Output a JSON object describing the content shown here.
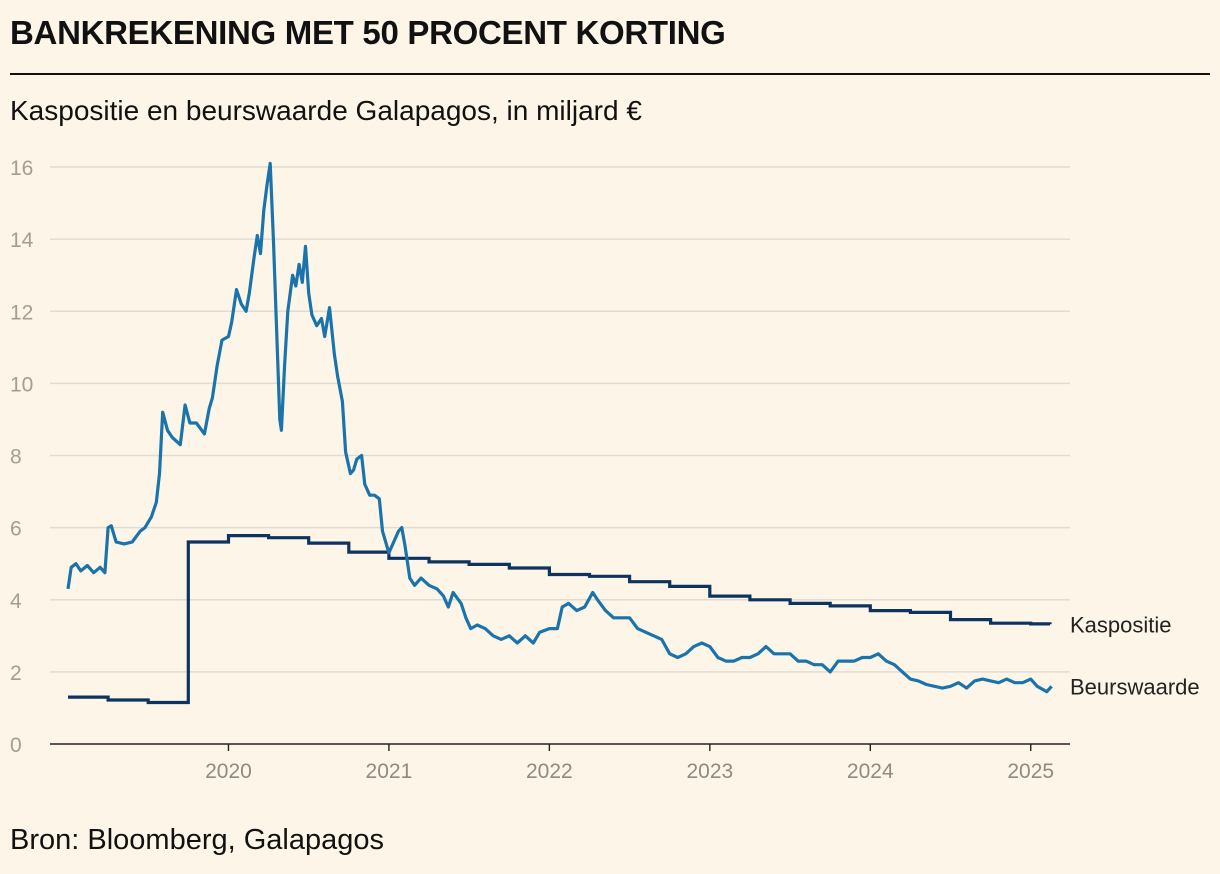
{
  "header": {
    "title": "BANKREKENING MET 50 PROCENT KORTING",
    "subtitle": "Kaspositie en beurswaarde Galapagos, in miljard €"
  },
  "footer": {
    "source": "Bron: Bloomberg, Galapagos"
  },
  "colors": {
    "kaspositie": "#0d3460",
    "beurswaarde": "#1a73ab",
    "grid": "#e0dcd3",
    "background": "#fdf6e8"
  },
  "chart_data": {
    "type": "line",
    "title": "Kaspositie en beurswaarde Galapagos, in miljard €",
    "xlabel": "",
    "ylabel": "",
    "xlim": [
      2019.0,
      2025.25
    ],
    "ylim": [
      0,
      16
    ],
    "y_ticks": [
      0,
      2,
      4,
      6,
      8,
      10,
      12,
      14,
      16
    ],
    "x_ticks": [
      2020,
      2021,
      2022,
      2023,
      2024,
      2025
    ],
    "grid": true,
    "series": [
      {
        "name": "Kaspositie",
        "interpolation": "step",
        "points": [
          [
            2019.0,
            1.3
          ],
          [
            2019.25,
            1.22
          ],
          [
            2019.5,
            1.15
          ],
          [
            2019.75,
            5.6
          ],
          [
            2020.0,
            5.78
          ],
          [
            2020.25,
            5.72
          ],
          [
            2020.5,
            5.57
          ],
          [
            2020.75,
            5.32
          ],
          [
            2021.0,
            5.15
          ],
          [
            2021.25,
            5.05
          ],
          [
            2021.5,
            4.98
          ],
          [
            2021.75,
            4.88
          ],
          [
            2022.0,
            4.7
          ],
          [
            2022.25,
            4.65
          ],
          [
            2022.5,
            4.5
          ],
          [
            2022.75,
            4.37
          ],
          [
            2023.0,
            4.1
          ],
          [
            2023.25,
            4.0
          ],
          [
            2023.5,
            3.9
          ],
          [
            2023.75,
            3.83
          ],
          [
            2024.0,
            3.7
          ],
          [
            2024.25,
            3.65
          ],
          [
            2024.5,
            3.45
          ],
          [
            2024.75,
            3.35
          ],
          [
            2025.0,
            3.33
          ],
          [
            2025.12,
            3.32
          ]
        ]
      },
      {
        "name": "Beurswaarde",
        "interpolation": "linear",
        "points": [
          [
            2019.0,
            4.3
          ],
          [
            2019.02,
            4.9
          ],
          [
            2019.05,
            5.0
          ],
          [
            2019.08,
            4.8
          ],
          [
            2019.12,
            4.95
          ],
          [
            2019.16,
            4.75
          ],
          [
            2019.2,
            4.9
          ],
          [
            2019.23,
            4.75
          ],
          [
            2019.25,
            6.0
          ],
          [
            2019.27,
            6.05
          ],
          [
            2019.3,
            5.6
          ],
          [
            2019.35,
            5.55
          ],
          [
            2019.4,
            5.6
          ],
          [
            2019.45,
            5.9
          ],
          [
            2019.48,
            6.0
          ],
          [
            2019.52,
            6.3
          ],
          [
            2019.55,
            6.7
          ],
          [
            2019.57,
            7.5
          ],
          [
            2019.59,
            9.2
          ],
          [
            2019.62,
            8.7
          ],
          [
            2019.65,
            8.5
          ],
          [
            2019.7,
            8.3
          ],
          [
            2019.73,
            9.4
          ],
          [
            2019.76,
            8.9
          ],
          [
            2019.8,
            8.9
          ],
          [
            2019.85,
            8.6
          ],
          [
            2019.88,
            9.3
          ],
          [
            2019.9,
            9.6
          ],
          [
            2019.93,
            10.5
          ],
          [
            2019.96,
            11.2
          ],
          [
            2020.0,
            11.3
          ],
          [
            2020.02,
            11.7
          ],
          [
            2020.05,
            12.6
          ],
          [
            2020.08,
            12.2
          ],
          [
            2020.11,
            12.0
          ],
          [
            2020.13,
            12.5
          ],
          [
            2020.16,
            13.5
          ],
          [
            2020.18,
            14.1
          ],
          [
            2020.2,
            13.6
          ],
          [
            2020.22,
            14.8
          ],
          [
            2020.24,
            15.5
          ],
          [
            2020.26,
            16.1
          ],
          [
            2020.28,
            14.0
          ],
          [
            2020.3,
            11.5
          ],
          [
            2020.32,
            9.0
          ],
          [
            2020.33,
            8.7
          ],
          [
            2020.35,
            10.5
          ],
          [
            2020.37,
            12.0
          ],
          [
            2020.4,
            13.0
          ],
          [
            2020.42,
            12.7
          ],
          [
            2020.44,
            13.3
          ],
          [
            2020.46,
            12.8
          ],
          [
            2020.48,
            13.8
          ],
          [
            2020.5,
            12.5
          ],
          [
            2020.52,
            11.9
          ],
          [
            2020.55,
            11.6
          ],
          [
            2020.58,
            11.8
          ],
          [
            2020.6,
            11.3
          ],
          [
            2020.63,
            12.1
          ],
          [
            2020.66,
            10.8
          ],
          [
            2020.68,
            10.2
          ],
          [
            2020.71,
            9.5
          ],
          [
            2020.73,
            8.1
          ],
          [
            2020.76,
            7.5
          ],
          [
            2020.78,
            7.6
          ],
          [
            2020.8,
            7.9
          ],
          [
            2020.83,
            8.0
          ],
          [
            2020.85,
            7.2
          ],
          [
            2020.88,
            6.9
          ],
          [
            2020.91,
            6.9
          ],
          [
            2020.94,
            6.8
          ],
          [
            2020.96,
            5.9
          ],
          [
            2020.98,
            5.6
          ],
          [
            2021.0,
            5.3
          ],
          [
            2021.03,
            5.6
          ],
          [
            2021.06,
            5.9
          ],
          [
            2021.08,
            6.0
          ],
          [
            2021.1,
            5.5
          ],
          [
            2021.13,
            4.6
          ],
          [
            2021.16,
            4.4
          ],
          [
            2021.2,
            4.6
          ],
          [
            2021.25,
            4.4
          ],
          [
            2021.3,
            4.3
          ],
          [
            2021.34,
            4.1
          ],
          [
            2021.37,
            3.8
          ],
          [
            2021.4,
            4.2
          ],
          [
            2021.45,
            3.9
          ],
          [
            2021.48,
            3.5
          ],
          [
            2021.51,
            3.2
          ],
          [
            2021.55,
            3.3
          ],
          [
            2021.6,
            3.2
          ],
          [
            2021.65,
            3.0
          ],
          [
            2021.7,
            2.9
          ],
          [
            2021.75,
            3.0
          ],
          [
            2021.8,
            2.8
          ],
          [
            2021.85,
            3.0
          ],
          [
            2021.9,
            2.8
          ],
          [
            2021.94,
            3.1
          ],
          [
            2022.0,
            3.2
          ],
          [
            2022.05,
            3.2
          ],
          [
            2022.08,
            3.8
          ],
          [
            2022.12,
            3.9
          ],
          [
            2022.17,
            3.7
          ],
          [
            2022.22,
            3.8
          ],
          [
            2022.27,
            4.2
          ],
          [
            2022.3,
            4.0
          ],
          [
            2022.35,
            3.7
          ],
          [
            2022.4,
            3.5
          ],
          [
            2022.45,
            3.5
          ],
          [
            2022.5,
            3.5
          ],
          [
            2022.55,
            3.2
          ],
          [
            2022.6,
            3.1
          ],
          [
            2022.65,
            3.0
          ],
          [
            2022.7,
            2.9
          ],
          [
            2022.75,
            2.5
          ],
          [
            2022.8,
            2.4
          ],
          [
            2022.85,
            2.5
          ],
          [
            2022.9,
            2.7
          ],
          [
            2022.95,
            2.8
          ],
          [
            2023.0,
            2.7
          ],
          [
            2023.05,
            2.4
          ],
          [
            2023.1,
            2.3
          ],
          [
            2023.15,
            2.3
          ],
          [
            2023.2,
            2.4
          ],
          [
            2023.25,
            2.4
          ],
          [
            2023.3,
            2.5
          ],
          [
            2023.35,
            2.7
          ],
          [
            2023.4,
            2.5
          ],
          [
            2023.45,
            2.5
          ],
          [
            2023.5,
            2.5
          ],
          [
            2023.55,
            2.3
          ],
          [
            2023.6,
            2.3
          ],
          [
            2023.65,
            2.2
          ],
          [
            2023.7,
            2.2
          ],
          [
            2023.75,
            2.0
          ],
          [
            2023.8,
            2.3
          ],
          [
            2023.85,
            2.3
          ],
          [
            2023.9,
            2.3
          ],
          [
            2023.95,
            2.4
          ],
          [
            2024.0,
            2.4
          ],
          [
            2024.05,
            2.5
          ],
          [
            2024.1,
            2.3
          ],
          [
            2024.15,
            2.2
          ],
          [
            2024.2,
            2.0
          ],
          [
            2024.25,
            1.8
          ],
          [
            2024.3,
            1.75
          ],
          [
            2024.35,
            1.65
          ],
          [
            2024.4,
            1.6
          ],
          [
            2024.45,
            1.55
          ],
          [
            2024.5,
            1.6
          ],
          [
            2024.55,
            1.7
          ],
          [
            2024.6,
            1.55
          ],
          [
            2024.65,
            1.75
          ],
          [
            2024.7,
            1.8
          ],
          [
            2024.75,
            1.75
          ],
          [
            2024.8,
            1.7
          ],
          [
            2024.85,
            1.8
          ],
          [
            2024.9,
            1.7
          ],
          [
            2024.95,
            1.7
          ],
          [
            2025.0,
            1.8
          ],
          [
            2025.04,
            1.6
          ],
          [
            2025.08,
            1.5
          ],
          [
            2025.1,
            1.45
          ],
          [
            2025.13,
            1.6
          ]
        ]
      }
    ],
    "annotations": [
      {
        "text": "Kaspositie",
        "series": "Kaspositie",
        "placement": "right of line end"
      },
      {
        "text": "Beurswaarde",
        "series": "Beurswaarde",
        "placement": "right of line end"
      }
    ]
  }
}
